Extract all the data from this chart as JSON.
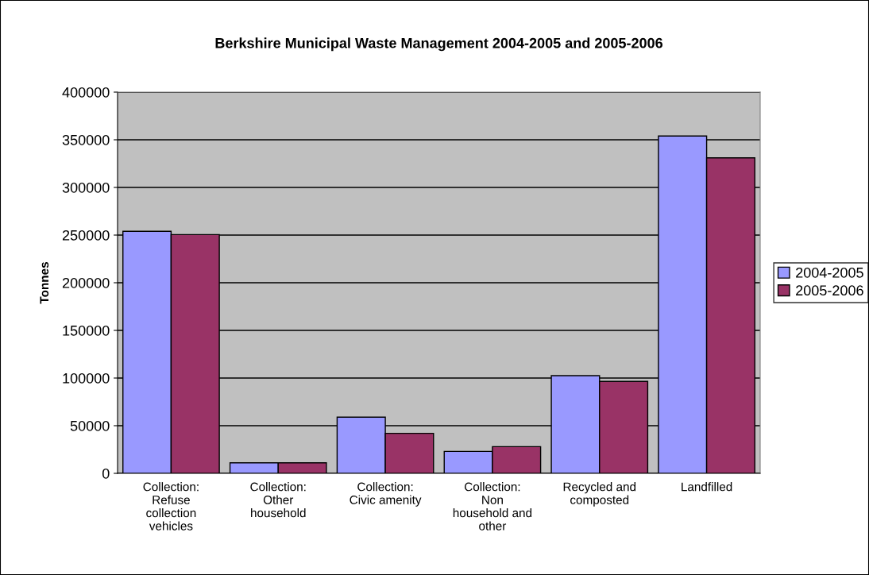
{
  "chart_data": {
    "type": "bar",
    "title": "Berkshire Municipal Waste Management 2004-2005 and 2005-2006",
    "ylabel": "Tonnes",
    "categories": [
      "Collection:\nRefuse\ncollection\nvehicles",
      "Collection:\nOther\nhousehold",
      "Collection:\nCivic amenity",
      "Collection:\nNon\nhousehold and\nother",
      "Recycled and\ncomposted",
      "Landfilled"
    ],
    "series": [
      {
        "name": "2004-2005",
        "color": "#9999ff",
        "values": [
          254000,
          11000,
          59000,
          23000,
          102500,
          354000
        ]
      },
      {
        "name": "2005-2006",
        "color": "#993366",
        "values": [
          250500,
          11000,
          42000,
          28000,
          96500,
          331000
        ]
      }
    ],
    "ylim": [
      0,
      400000
    ],
    "yticks": [
      0,
      50000,
      100000,
      150000,
      200000,
      250000,
      300000,
      350000,
      400000
    ],
    "grid": "y",
    "legend": "right"
  }
}
